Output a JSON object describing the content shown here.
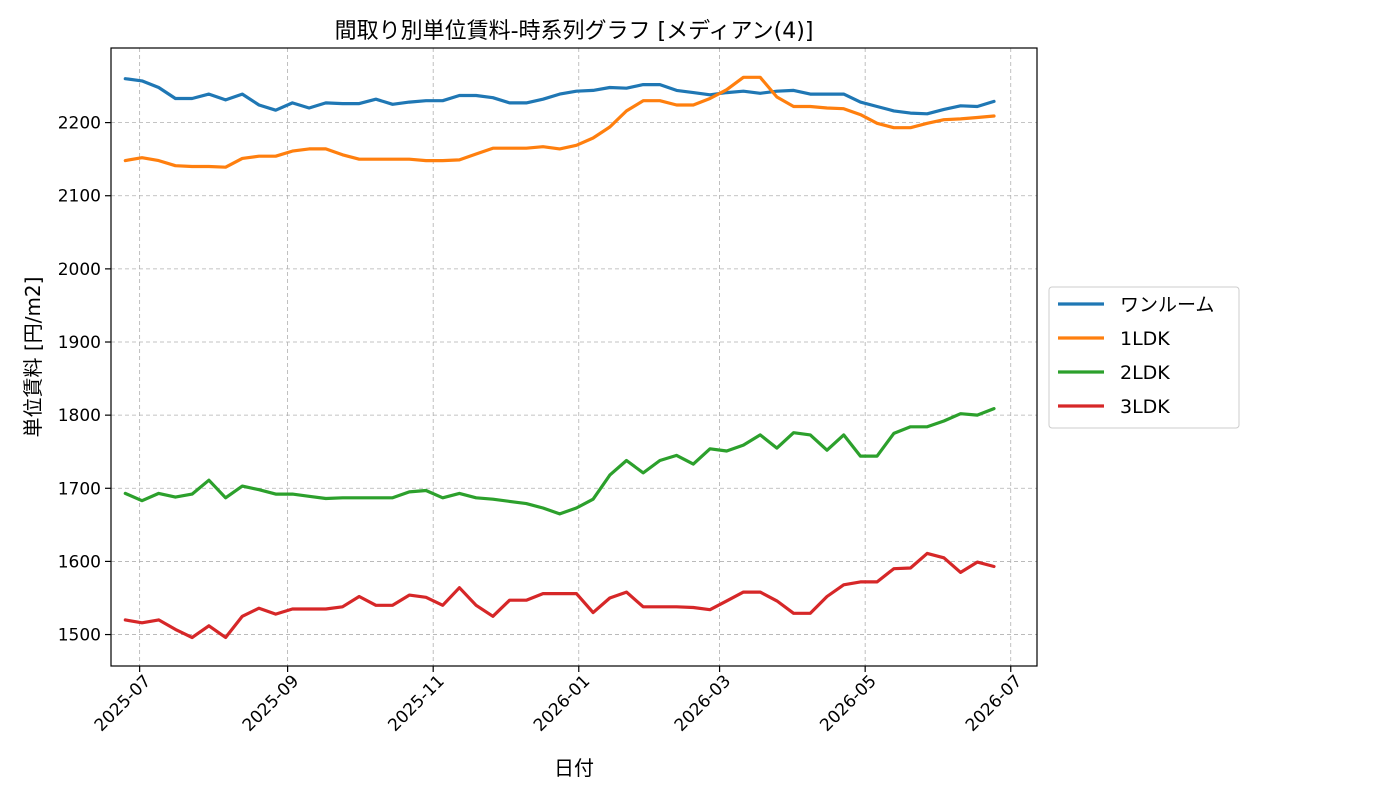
{
  "chart_data": {
    "type": "line",
    "title": "間取り別単位賃料-時系列グラフ [メディアン(4)]",
    "xlabel": "日付",
    "ylabel": "単位賃料 [円/m2]",
    "ylim": [
      1457,
      2302
    ],
    "xlim": [
      "2025-06-19",
      "2026-07-12"
    ],
    "x_ticks": [
      "2025-07-01",
      "2025-09-01",
      "2025-11-01",
      "2026-01-01",
      "2026-03-01",
      "2026-05-01",
      "2026-07-01"
    ],
    "x_tick_labels": [
      "2025-07",
      "2025-09",
      "2025-11",
      "2026-01",
      "2026-03",
      "2026-05",
      "2026-07"
    ],
    "y_ticks": [
      1500,
      1600,
      1700,
      1800,
      1900,
      2000,
      2100,
      2200
    ],
    "grid": true,
    "legend_position": "center-right, outside",
    "x": [
      "2025-06-25",
      "2025-07-02",
      "2025-07-09",
      "2025-07-16",
      "2025-07-23",
      "2025-07-30",
      "2025-08-06",
      "2025-08-13",
      "2025-08-20",
      "2025-08-27",
      "2025-09-03",
      "2025-09-10",
      "2025-09-17",
      "2025-09-24",
      "2025-10-01",
      "2025-10-08",
      "2025-10-15",
      "2025-10-22",
      "2025-10-29",
      "2025-11-05",
      "2025-11-12",
      "2025-11-19",
      "2025-11-26",
      "2025-12-03",
      "2025-12-10",
      "2025-12-17",
      "2025-12-24",
      "2025-12-31",
      "2026-01-07",
      "2026-01-14",
      "2026-01-21",
      "2026-01-28",
      "2026-02-04",
      "2026-02-11",
      "2026-02-18",
      "2026-02-25",
      "2026-03-04",
      "2026-03-11",
      "2026-03-18",
      "2026-03-25",
      "2026-04-01",
      "2026-04-08",
      "2026-04-15",
      "2026-04-22",
      "2026-04-29",
      "2026-05-06",
      "2026-05-13",
      "2026-05-20",
      "2026-05-27",
      "2026-06-03",
      "2026-06-10",
      "2026-06-17",
      "2026-06-24"
    ],
    "series": [
      {
        "name": "ワンルーム",
        "color": "#1f77b4",
        "values": [
          2260,
          2257,
          2248,
          2233,
          2233,
          2239,
          2231,
          2239,
          2224,
          2217,
          2227,
          2220,
          2227,
          2226,
          2226,
          2232,
          2225,
          2228,
          2230,
          2230,
          2237,
          2237,
          2234,
          2227,
          2227,
          2232,
          2239,
          2243,
          2244,
          2248,
          2247,
          2252,
          2252,
          2244,
          2241,
          2238,
          2241,
          2243,
          2240,
          2243,
          2244,
          2239,
          2239,
          2239,
          2228,
          2222,
          2216,
          2213,
          2212,
          2218,
          2223,
          2222,
          2229
        ]
      },
      {
        "name": "1LDK",
        "color": "#ff7f0e",
        "values": [
          2148,
          2152,
          2148,
          2141,
          2140,
          2140,
          2139,
          2151,
          2154,
          2154,
          2161,
          2164,
          2164,
          2156,
          2150,
          2150,
          2150,
          2150,
          2148,
          2148,
          2149,
          2157,
          2165,
          2165,
          2165,
          2167,
          2164,
          2169,
          2179,
          2194,
          2216,
          2230,
          2230,
          2224,
          2224,
          2233,
          2245,
          2262,
          2262,
          2235,
          2222,
          2222,
          2220,
          2219,
          2211,
          2199,
          2193,
          2193,
          2199,
          2204,
          2205,
          2207,
          2209
        ]
      },
      {
        "name": "2LDK",
        "color": "#2ca02c",
        "values": [
          1693,
          1683,
          1693,
          1688,
          1692,
          1711,
          1687,
          1703,
          1698,
          1692,
          1692,
          1689,
          1686,
          1687,
          1687,
          1687,
          1687,
          1695,
          1697,
          1687,
          1693,
          1687,
          1685,
          1682,
          1679,
          1673,
          1665,
          1673,
          1685,
          1718,
          1738,
          1721,
          1738,
          1745,
          1733,
          1754,
          1751,
          1759,
          1773,
          1755,
          1776,
          1773,
          1752,
          1773,
          1744,
          1744,
          1775,
          1784,
          1784,
          1792,
          1802,
          1800,
          1809
        ]
      },
      {
        "name": "3LDK",
        "color": "#d62728",
        "values": [
          1520,
          1516,
          1520,
          1507,
          1496,
          1512,
          1496,
          1525,
          1536,
          1528,
          1535,
          1535,
          1535,
          1538,
          1552,
          1540,
          1540,
          1554,
          1551,
          1540,
          1564,
          1540,
          1525,
          1547,
          1547,
          1556,
          1556,
          1556,
          1530,
          1550,
          1558,
          1538,
          1538,
          1538,
          1537,
          1534,
          1546,
          1558,
          1558,
          1546,
          1529,
          1529,
          1552,
          1568,
          1572,
          1572,
          1590,
          1591,
          1611,
          1605,
          1585,
          1599,
          1593
        ]
      }
    ]
  }
}
